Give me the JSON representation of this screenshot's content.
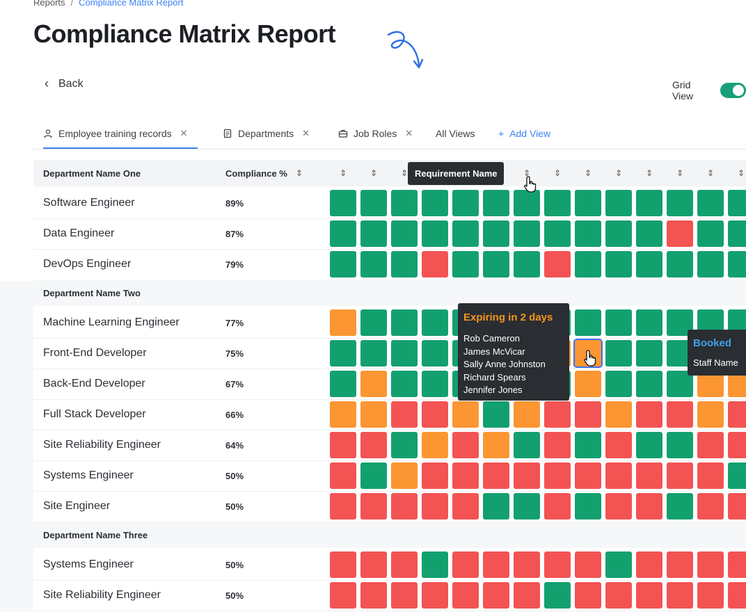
{
  "breadcrumb": {
    "parent": "Reports",
    "separator": "/",
    "current": "Compliance Matrix Report"
  },
  "page": {
    "title": "Compliance Matrix Report"
  },
  "toolbar": {
    "back_label": "Back",
    "grid_view_label": "Grid View",
    "grid_view_on": true
  },
  "tabs": [
    {
      "label": "Employee training records",
      "icon": "user-icon",
      "closable": true,
      "active": true
    },
    {
      "label": "Departments",
      "icon": "document-icon",
      "closable": true,
      "active": false
    },
    {
      "label": "Job Roles",
      "icon": "briefcase-icon",
      "closable": true,
      "active": false
    },
    {
      "label": "All Views",
      "icon": "",
      "closable": false,
      "active": false
    },
    {
      "label": "Add View",
      "icon": "plus-icon",
      "closable": false,
      "active": false
    }
  ],
  "table": {
    "col_department": "Department Name One",
    "col_compliance": "Compliance %",
    "sort_glyph": "⇕",
    "departments": [
      {
        "name": "Department Name One",
        "roles": [
          {
            "name": "Software Engineer",
            "pct": "89%",
            "cells": "gggggggggggggg"
          },
          {
            "name": "Data Engineer",
            "pct": "87%",
            "cells": "gggggggggggrgg"
          },
          {
            "name": "DevOps Engineer",
            "pct": "79%",
            "cells": "gggrgggrgggggg"
          }
        ]
      },
      {
        "name": "Department Name Two",
        "roles": [
          {
            "name": "Machine Learning Engineer",
            "pct": "77%",
            "cells": "oggggggggggggg"
          },
          {
            "name": "Front-End Developer",
            "pct": "75%",
            "cells": "gggggggoogggog"
          },
          {
            "name": "Back-End Developer",
            "pct": "67%",
            "cells": "goggggggogggoo"
          },
          {
            "name": "Full Stack Developer",
            "pct": "66%",
            "cells": "oorrogorrorror"
          },
          {
            "name": "Site Reliability Engineer",
            "pct": "64%",
            "cells": "rrgorogrgrggrr"
          },
          {
            "name": "Systems Engineer",
            "pct": "50%",
            "cells": "rgorrrrrrrrrrg"
          },
          {
            "name": "Site Engineer",
            "pct": "50%",
            "cells": "rrrrrggrgrrgrr"
          }
        ]
      },
      {
        "name": "Department Name Three",
        "roles": [
          {
            "name": "Systems Engineer",
            "pct": "50%",
            "cells": "rrrgrrrrrgrrrr"
          },
          {
            "name": "Site Reliability Engineer",
            "pct": "50%",
            "cells": "rrrrrrrgrrrrrr"
          }
        ]
      }
    ]
  },
  "tooltips": {
    "requirement": "Requirement Name",
    "expiring_title": "Expiring in 2 days",
    "expiring_people": [
      "Rob Cameron",
      "James McVicar",
      "Sally Anne Johnston",
      "Richard Spears",
      "Jennifer Jones"
    ],
    "booked_title": "Booked",
    "booked_sub": "Staff Name"
  },
  "colors": {
    "green": "#13a06f",
    "red": "#f35353",
    "orange": "#fb9632",
    "accent": "#3b82f6"
  }
}
